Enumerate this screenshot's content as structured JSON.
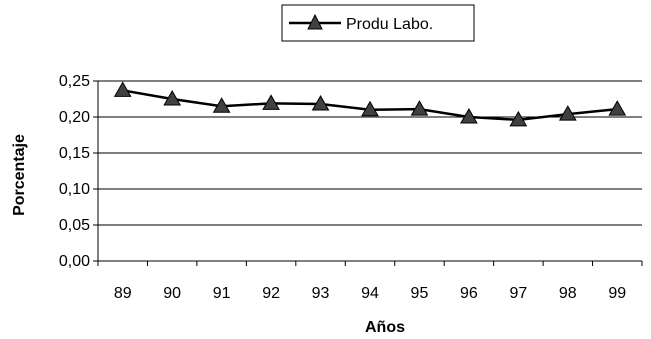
{
  "chart_data": {
    "type": "line",
    "categories": [
      "89",
      "90",
      "91",
      "92",
      "93",
      "94",
      "95",
      "96",
      "97",
      "98",
      "99"
    ],
    "series": [
      {
        "name": "Produ Labo.",
        "values": [
          0.237,
          0.225,
          0.215,
          0.219,
          0.218,
          0.21,
          0.211,
          0.2,
          0.196,
          0.204,
          0.211
        ],
        "color": "#000000",
        "marker": "triangle",
        "marker_color": "#404040"
      }
    ],
    "ylim": [
      0,
      0.25
    ],
    "yticks": [
      "0,00",
      "0,05",
      "0,10",
      "0,15",
      "0,20",
      "0,25"
    ],
    "xlabel": "Años",
    "ylabel": "Porcentaje",
    "grid": true,
    "legend_position": "top-center"
  }
}
